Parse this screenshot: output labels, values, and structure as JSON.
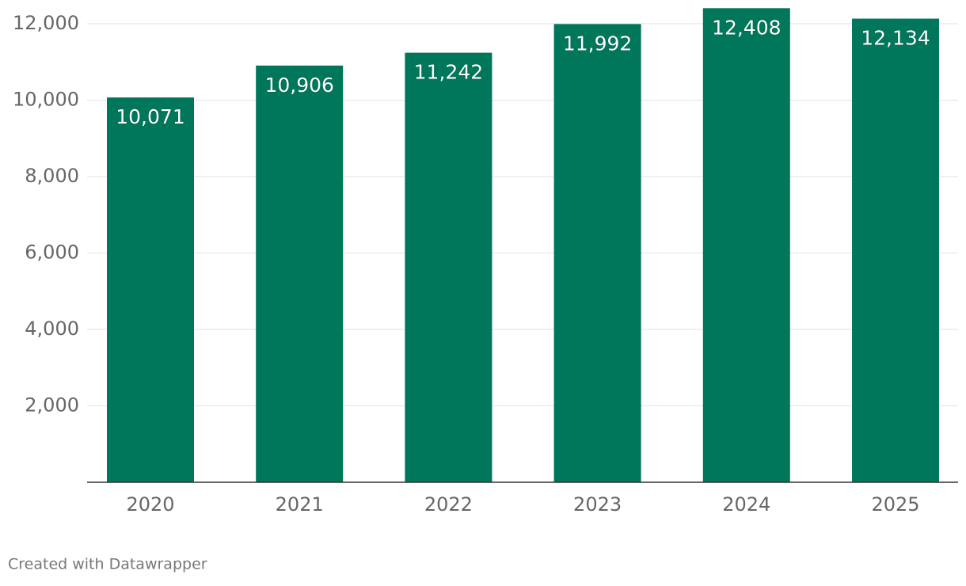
{
  "chart_data": {
    "type": "bar",
    "categories": [
      "2020",
      "2021",
      "2022",
      "2023",
      "2024",
      "2025"
    ],
    "values": [
      10071,
      10906,
      11242,
      11992,
      12408,
      12134
    ],
    "value_labels": [
      "10,071",
      "10,906",
      "11,242",
      "11,992",
      "12,408",
      "12,134"
    ],
    "color": "#00765a",
    "ylim": [
      0,
      12000
    ],
    "yticks": [
      {
        "value": 2000,
        "label": "2,000"
      },
      {
        "value": 4000,
        "label": "4,000"
      },
      {
        "value": 6000,
        "label": "6,000"
      },
      {
        "value": 8000,
        "label": "8,000"
      },
      {
        "value": 10000,
        "label": "10,000"
      },
      {
        "value": 12000,
        "label": "12,000"
      }
    ],
    "grid": true,
    "footer": "Created with Datawrapper"
  }
}
